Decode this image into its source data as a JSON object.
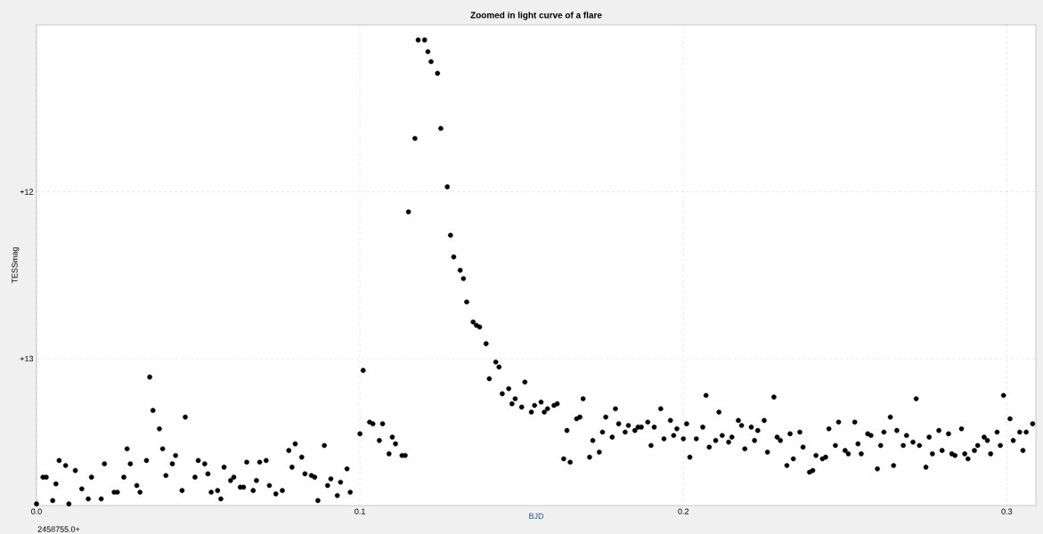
{
  "chart_data": {
    "type": "scatter",
    "title": "Zoomed in light curve of a flare",
    "xlabel": "BJD",
    "ylabel": "TESSmag",
    "annotations": [
      "2458755.0+"
    ],
    "xlim": [
      0,
      0.309
    ],
    "ylim": [
      13.88,
      11.0
    ],
    "xticks": [
      {
        "value": 0,
        "label": "0.0"
      },
      0.1,
      0.2,
      0.3
    ],
    "yticks": [
      {
        "value": 12,
        "label": "+12"
      },
      {
        "value": 13,
        "label": "+13"
      }
    ],
    "grid": true,
    "marker": "circle",
    "series": [
      {
        "color": "#000000",
        "x": [
          0.0,
          0.002,
          0.003,
          0.005,
          0.006,
          0.007,
          0.009,
          0.01,
          0.012,
          0.014,
          0.016,
          0.017,
          0.02,
          0.021,
          0.024,
          0.025,
          0.027,
          0.028,
          0.029,
          0.031,
          0.032,
          0.034,
          0.035,
          0.036,
          0.038,
          0.039,
          0.04,
          0.042,
          0.043,
          0.045,
          0.046,
          0.049,
          0.05,
          0.052,
          0.053,
          0.054,
          0.056,
          0.057,
          0.058,
          0.06,
          0.061,
          0.063,
          0.064,
          0.065,
          0.067,
          0.068,
          0.069,
          0.071,
          0.072,
          0.074,
          0.076,
          0.078,
          0.079,
          0.08,
          0.082,
          0.083,
          0.085,
          0.086,
          0.087,
          0.089,
          0.09,
          0.091,
          0.093,
          0.094,
          0.096,
          0.097,
          0.1,
          0.101,
          0.103,
          0.104,
          0.106,
          0.107,
          0.109,
          0.11,
          0.111,
          0.113,
          0.114,
          0.115,
          0.117,
          0.118,
          0.12,
          0.121,
          0.122,
          0.124,
          0.125,
          0.127,
          0.128,
          0.129,
          0.131,
          0.132,
          0.133,
          0.135,
          0.136,
          0.137,
          0.139,
          0.14,
          0.142,
          0.143,
          0.144,
          0.146,
          0.147,
          0.148,
          0.15,
          0.151,
          0.153,
          0.154,
          0.156,
          0.157,
          0.158,
          0.16,
          0.161,
          0.163,
          0.164,
          0.165,
          0.167,
          0.168,
          0.169,
          0.171,
          0.172,
          0.174,
          0.175,
          0.176,
          0.178,
          0.179,
          0.18,
          0.182,
          0.183,
          0.185,
          0.186,
          0.187,
          0.189,
          0.19,
          0.191,
          0.193,
          0.194,
          0.196,
          0.197,
          0.198,
          0.2,
          0.201,
          0.202,
          0.204,
          0.206,
          0.207,
          0.208,
          0.21,
          0.211,
          0.212,
          0.214,
          0.215,
          0.217,
          0.218,
          0.219,
          0.221,
          0.222,
          0.223,
          0.225,
          0.226,
          0.228,
          0.229,
          0.23,
          0.232,
          0.233,
          0.234,
          0.236,
          0.237,
          0.239,
          0.24,
          0.241,
          0.243,
          0.244,
          0.245,
          0.247,
          0.248,
          0.25,
          0.251,
          0.253,
          0.254,
          0.255,
          0.257,
          0.258,
          0.26,
          0.261,
          0.262,
          0.264,
          0.265,
          0.266,
          0.268,
          0.269,
          0.271,
          0.272,
          0.273,
          0.275,
          0.276,
          0.277,
          0.279,
          0.28,
          0.282,
          0.283,
          0.284,
          0.286,
          0.287,
          0.288,
          0.29,
          0.291,
          0.293,
          0.294,
          0.295,
          0.297,
          0.298,
          0.299,
          0.301,
          0.302,
          0.304,
          0.305,
          0.306,
          0.308
        ],
        "values": [
          13.87,
          13.71,
          13.71,
          13.85,
          13.75,
          13.61,
          13.64,
          13.87,
          13.67,
          13.78,
          13.84,
          13.71,
          13.84,
          13.63,
          13.8,
          13.8,
          13.71,
          13.54,
          13.63,
          13.76,
          13.8,
          13.61,
          13.11,
          13.31,
          13.42,
          13.54,
          13.7,
          13.63,
          13.58,
          13.79,
          13.35,
          13.71,
          13.61,
          13.63,
          13.69,
          13.8,
          13.79,
          13.84,
          13.65,
          13.73,
          13.71,
          13.77,
          13.77,
          13.62,
          13.79,
          13.73,
          13.62,
          13.61,
          13.76,
          13.81,
          13.79,
          13.55,
          13.65,
          13.51,
          13.59,
          13.69,
          13.7,
          13.71,
          13.85,
          13.52,
          13.76,
          13.72,
          13.82,
          13.74,
          13.66,
          13.8,
          13.45,
          13.07,
          13.38,
          13.39,
          13.49,
          13.39,
          13.57,
          13.47,
          13.51,
          13.58,
          13.58,
          12.12,
          11.68,
          11.09,
          11.09,
          11.16,
          11.22,
          11.29,
          11.62,
          11.97,
          12.26,
          12.39,
          12.47,
          12.52,
          12.66,
          12.78,
          12.8,
          12.81,
          12.91,
          13.12,
          13.02,
          13.05,
          13.21,
          13.18,
          13.27,
          13.24,
          13.29,
          13.14,
          13.32,
          13.28,
          13.26,
          13.32,
          13.3,
          13.28,
          13.27,
          13.6,
          13.43,
          13.62,
          13.36,
          13.35,
          13.24,
          13.59,
          13.49,
          13.56,
          13.44,
          13.35,
          13.47,
          13.3,
          13.39,
          13.44,
          13.4,
          13.43,
          13.41,
          13.41,
          13.38,
          13.52,
          13.41,
          13.3,
          13.48,
          13.37,
          13.46,
          13.42,
          13.48,
          13.39,
          13.59,
          13.48,
          13.41,
          13.22,
          13.53,
          13.49,
          13.32,
          13.46,
          13.5,
          13.47,
          13.37,
          13.4,
          13.54,
          13.41,
          13.49,
          13.43,
          13.37,
          13.56,
          13.23,
          13.47,
          13.49,
          13.64,
          13.45,
          13.6,
          13.44,
          13.53,
          13.68,
          13.67,
          13.58,
          13.6,
          13.59,
          13.42,
          13.52,
          13.38,
          13.55,
          13.57,
          13.38,
          13.51,
          13.57,
          13.45,
          13.46,
          13.66,
          13.52,
          13.44,
          13.35,
          13.64,
          13.43,
          13.52,
          13.46,
          13.5,
          13.24,
          13.52,
          13.65,
          13.47,
          13.57,
          13.43,
          13.55,
          13.45,
          13.57,
          13.58,
          13.42,
          13.57,
          13.6,
          13.55,
          13.52,
          13.47,
          13.49,
          13.57,
          13.44,
          13.52,
          13.22,
          13.36,
          13.49,
          13.44,
          13.55,
          13.44,
          13.39
        ]
      }
    ]
  }
}
